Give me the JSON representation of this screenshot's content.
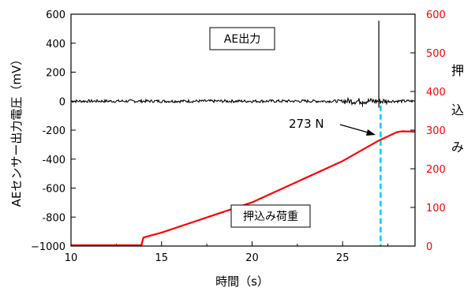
{
  "chart_data": {
    "type": "line",
    "xlabel": "時間（s）",
    "ylabel_left": "AEセンサー出力電圧（mV）",
    "ylabel_right": [
      "押",
      "込",
      "み"
    ],
    "x_ticks": [
      "10",
      "15",
      "20",
      "25"
    ],
    "y_left_ticks": [
      "600",
      "400",
      "200",
      "0",
      "-200",
      "-400",
      "-600",
      "-800",
      "−1000"
    ],
    "y_right_ticks": [
      "600",
      "500",
      "400",
      "300",
      "200",
      "100",
      "0"
    ],
    "xlim": [
      10,
      29
    ],
    "ylim_left": [
      -1000,
      600
    ],
    "ylim_right": [
      0,
      600
    ],
    "axis_colors": {
      "left": "#000000",
      "right": "#ff0000"
    },
    "series": [
      {
        "name": "AE出力",
        "axis": "left",
        "color": "#000000",
        "noise_amplitude_mV": 10,
        "x": [
          10,
          29
        ],
        "y": [
          0,
          0
        ],
        "spike": {
          "x": 27.0,
          "y_max": 555,
          "y_min": -45
        }
      },
      {
        "name": "押込み荷重",
        "axis": "right",
        "color": "#ff0000",
        "x": [
          10,
          13.9,
          13.9,
          14.0,
          15.0,
          20.0,
          25.0,
          27.0,
          28.0,
          28.3,
          29.0
        ],
        "y": [
          2,
          2,
          5,
          22,
          35,
          113,
          220,
          273,
          295,
          297,
          296
        ]
      }
    ],
    "marker": {
      "x": 27.1,
      "color": "#00ccff",
      "label": "273 N"
    },
    "annotations": [
      {
        "text": "AE出力"
      },
      {
        "text": "押込み荷重"
      }
    ]
  }
}
